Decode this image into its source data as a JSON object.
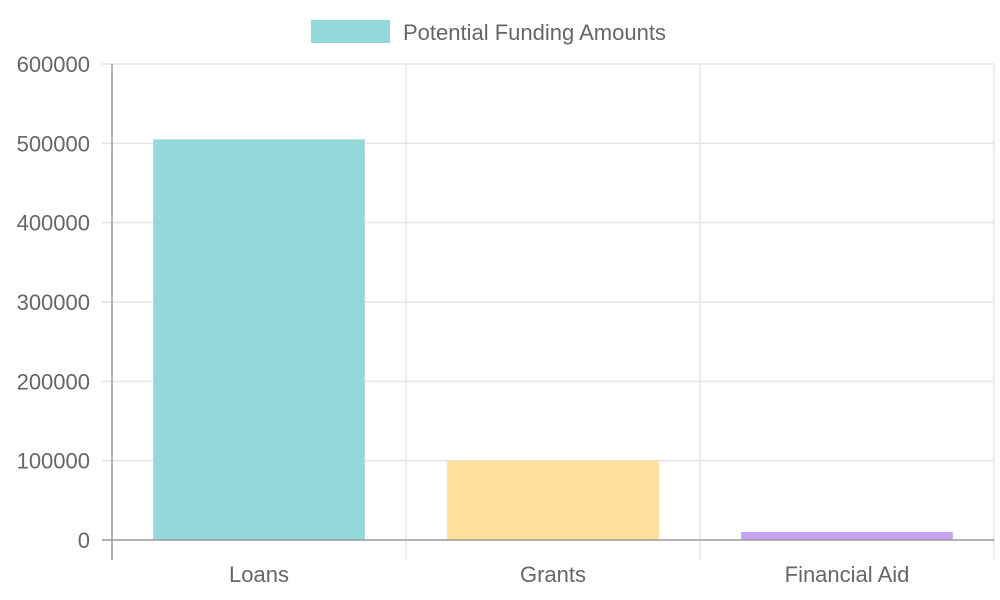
{
  "chart_data": {
    "type": "bar",
    "categories": [
      "Loans",
      "Grants",
      "Financial Aid"
    ],
    "series": [
      {
        "name": "Potential Funding Amounts",
        "values": [
          505000,
          100000,
          10000
        ]
      }
    ],
    "bar_colors": [
      "#93d9d9",
      "#fde09b",
      "#c4a3f5"
    ],
    "legend_color": "#93d9d9",
    "legend_border": "#93d9d9",
    "ylim": [
      0,
      600000
    ],
    "yticks": [
      0,
      100000,
      200000,
      300000,
      400000,
      500000,
      600000
    ],
    "grid": true,
    "grid_color": "#e5e5e5",
    "axis_color": "#999999",
    "text_color": "#666666",
    "legend_position": "top",
    "title": "",
    "xlabel": "",
    "ylabel": ""
  }
}
